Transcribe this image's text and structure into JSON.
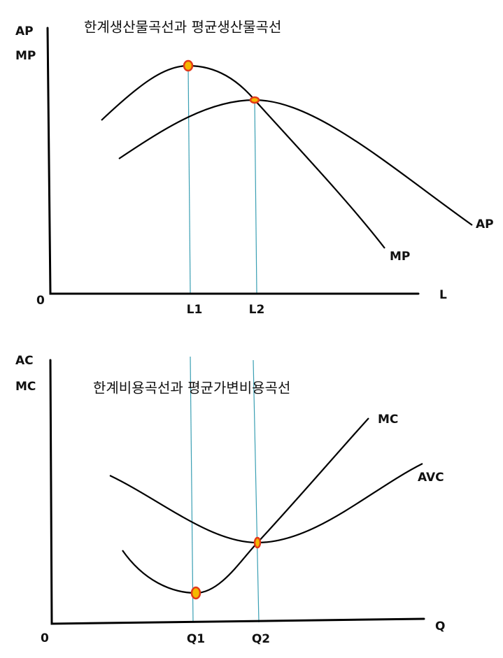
{
  "top": {
    "title": "한계생산물곡선과 평균생산물곡선",
    "y_axis_labels": [
      "AP",
      "MP"
    ],
    "origin": "0",
    "x_axis_label": "L",
    "x_marks": [
      "L1",
      "L2"
    ],
    "curve_labels": {
      "mp": "MP",
      "ap": "AP"
    }
  },
  "bottom": {
    "title": "한계비용곡선과 평균가변비용곡선",
    "y_axis_labels": [
      "AC",
      "MC"
    ],
    "origin": "0",
    "x_axis_label": "Q",
    "x_marks": [
      "Q1",
      "Q2"
    ],
    "curve_labels": {
      "mc": "MC",
      "avc": "AVC"
    }
  }
}
